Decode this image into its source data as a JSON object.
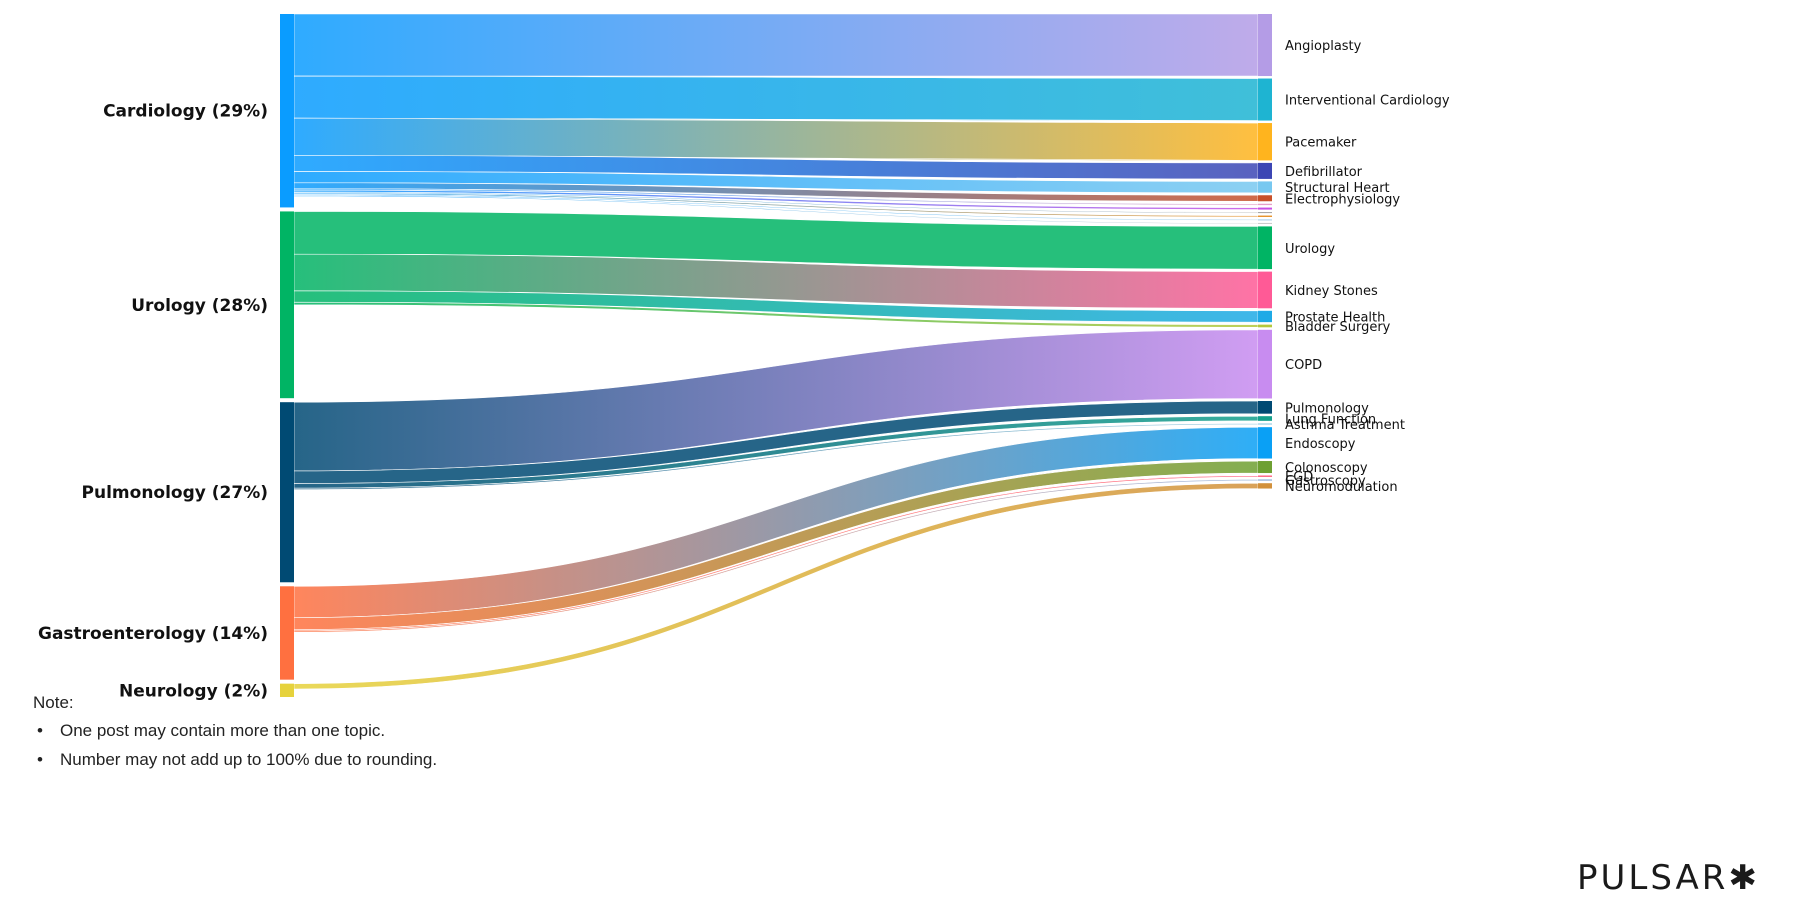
{
  "chart_data": {
    "type": "sankey",
    "title": "",
    "sources": [
      {
        "name": "Cardiology (29%)",
        "value": 29,
        "color": "#0a9cff"
      },
      {
        "name": "Urology (28%)",
        "value": 28,
        "color": "#00b464"
      },
      {
        "name": "Pulmonology (27%)",
        "value": 27,
        "color": "#004a73"
      },
      {
        "name": "Gastroenterology (14%)",
        "value": 14,
        "color": "#ff7040"
      },
      {
        "name": "Neurology (2%)",
        "value": 2,
        "color": "#e6d23c"
      }
    ],
    "targets": [
      {
        "name": "Angioplasty",
        "color": "#b49ce6"
      },
      {
        "name": "Interventional Cardiology",
        "color": "#1eb4d2"
      },
      {
        "name": "Pacemaker",
        "color": "#ffb41e"
      },
      {
        "name": "Defibrillator",
        "color": "#3c46b4"
      },
      {
        "name": "Structural Heart",
        "color": "#78c8f0"
      },
      {
        "name": "Electrophysiology",
        "color": "#c8502a"
      },
      {
        "name": "",
        "color": "#e6a0c8"
      },
      {
        "name": "",
        "color": "#c850e6"
      },
      {
        "name": "",
        "color": "#a0a0a0"
      },
      {
        "name": "",
        "color": "#e68c1e"
      },
      {
        "name": "",
        "color": "#a0c8e6"
      },
      {
        "name": "",
        "color": "#c8c8c8"
      },
      {
        "name": "Urology",
        "color": "#00b464"
      },
      {
        "name": "Kidney Stones",
        "color": "#ff5a96"
      },
      {
        "name": "Prostate Health",
        "color": "#1eaae6"
      },
      {
        "name": "Bladder Surgery",
        "color": "#b4c83c"
      },
      {
        "name": "COPD",
        "color": "#c88cf0"
      },
      {
        "name": "Pulmonology",
        "color": "#004a73"
      },
      {
        "name": "Lung Function",
        "color": "#14a08c"
      },
      {
        "name": "Asthma Treatment",
        "color": "#a0d2e6"
      },
      {
        "name": "Endoscopy",
        "color": "#0aa0f5"
      },
      {
        "name": "Colonoscopy",
        "color": "#6ea032"
      },
      {
        "name": "EGD",
        "color": "#ff5a78"
      },
      {
        "name": "Gastroscopy",
        "color": "#96b4dc"
      },
      {
        "name": "Neuromodulation",
        "color": "#d2913c"
      }
    ],
    "links": [
      {
        "source": 0,
        "target": 0,
        "value": 9.3
      },
      {
        "source": 0,
        "target": 1,
        "value": 6.3
      },
      {
        "source": 0,
        "target": 2,
        "value": 5.6
      },
      {
        "source": 0,
        "target": 3,
        "value": 2.4
      },
      {
        "source": 0,
        "target": 4,
        "value": 1.7
      },
      {
        "source": 0,
        "target": 5,
        "value": 0.9
      },
      {
        "source": 0,
        "target": 6,
        "value": 0.2
      },
      {
        "source": 0,
        "target": 7,
        "value": 0.3
      },
      {
        "source": 0,
        "target": 8,
        "value": 0.15
      },
      {
        "source": 0,
        "target": 9,
        "value": 0.2
      },
      {
        "source": 0,
        "target": 10,
        "value": 0.15
      },
      {
        "source": 0,
        "target": 11,
        "value": 0.15
      },
      {
        "source": 1,
        "target": 12,
        "value": 6.4
      },
      {
        "source": 1,
        "target": 13,
        "value": 5.5
      },
      {
        "source": 1,
        "target": 14,
        "value": 1.7
      },
      {
        "source": 1,
        "target": 15,
        "value": 0.4
      },
      {
        "source": 2,
        "target": 16,
        "value": 10.3
      },
      {
        "source": 2,
        "target": 17,
        "value": 1.9
      },
      {
        "source": 2,
        "target": 18,
        "value": 0.7
      },
      {
        "source": 2,
        "target": 19,
        "value": 0.2
      },
      {
        "source": 3,
        "target": 20,
        "value": 4.7
      },
      {
        "source": 3,
        "target": 21,
        "value": 1.8
      },
      {
        "source": 3,
        "target": 22,
        "value": 0.2
      },
      {
        "source": 3,
        "target": 23,
        "value": 0.2
      },
      {
        "source": 4,
        "target": 24,
        "value": 0.8
      }
    ]
  },
  "note": {
    "title": "Note:",
    "bullet": "•",
    "items": [
      "One post may contain more than one topic.",
      "Number may not add up to 100% due to rounding."
    ]
  },
  "logo": {
    "text": "PULSAR",
    "star": "✱"
  }
}
